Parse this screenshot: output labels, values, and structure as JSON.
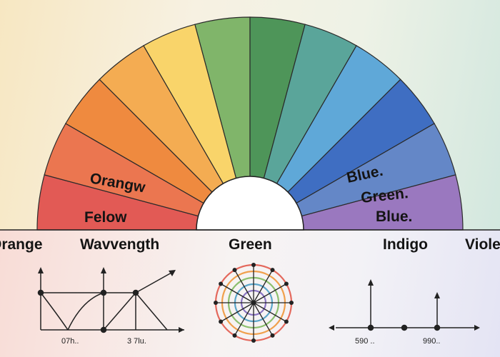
{
  "arc_segments": [
    {
      "color": "#e25a55"
    },
    {
      "color": "#eb7650"
    },
    {
      "color": "#ef8a3f"
    },
    {
      "color": "#f4ac52"
    },
    {
      "color": "#f9d46a"
    },
    {
      "color": "#80b56a"
    },
    {
      "color": "#4e9559"
    },
    {
      "color": "#5aa59a"
    },
    {
      "color": "#5fa8d8"
    },
    {
      "color": "#3f6ec2"
    },
    {
      "color": "#6487c7"
    },
    {
      "color": "#9a78bf"
    }
  ],
  "arc_labels": {
    "orangw": "Orangw",
    "felow": "Felow",
    "blue_top": "Blue.",
    "green": "Green.",
    "blue_bottom": "Blue."
  },
  "band_labels": {
    "orange": "Orange",
    "wavelength": "Wavvength",
    "green": "Green",
    "indigo": "Indigo",
    "violet": "Violet"
  },
  "tick_labels": {
    "left_1": "07h..",
    "left_2": "3 7lu.",
    "right_1": "590 ..",
    "right_2": "990.."
  },
  "wheel_colors": [
    "#e4685c",
    "#f0a04c",
    "#8cbf6e",
    "#5aa5c9",
    "#8a74c2"
  ]
}
